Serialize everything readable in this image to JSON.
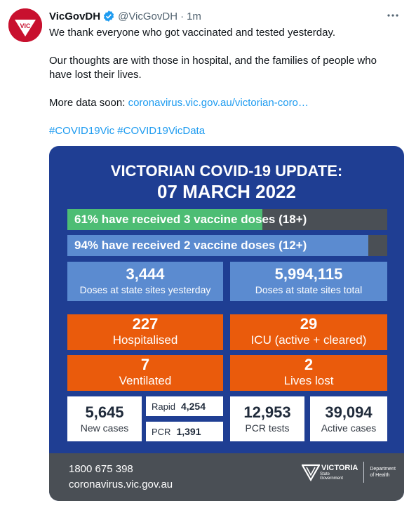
{
  "tweet": {
    "display_name": "VicGovDH",
    "handle": "@VicGovDH",
    "dot": "·",
    "time": "1m",
    "avatar_text": "VIC",
    "paragraph1": "We thank everyone who got vaccinated and tested yesterday.",
    "paragraph2": "Our thoughts are with those in hospital, and the families of people who have lost their lives.",
    "paragraph3_prefix": "More data soon: ",
    "paragraph3_link": "coronavirus.vic.gov.au/victorian-coro…",
    "hashtag1": "#COVID19Vic",
    "hashtag2": "#COVID19VicData"
  },
  "card": {
    "title_line1": "VICTORIAN COVID-19 UPDATE:",
    "title_line2": "07 MARCH 2022",
    "vaccine_bar_1": {
      "label": "61% have received 3 vaccine doses (18+)",
      "percent": 61,
      "color": "#4dbd74"
    },
    "vaccine_bar_2": {
      "label": "94% have received 2 vaccine doses (12+)",
      "percent": 94,
      "color": "#5b8bd0"
    },
    "doses_yesterday": {
      "value": "3,444",
      "label": "Doses at state sites yesterday"
    },
    "doses_total": {
      "value": "5,994,115",
      "label": "Doses at state sites total"
    },
    "hospitalised": {
      "value": "227",
      "label": "Hospitalised"
    },
    "icu": {
      "value": "29",
      "label": "ICU (active + cleared)"
    },
    "ventilated": {
      "value": "7",
      "label": "Ventilated"
    },
    "lives_lost": {
      "value": "2",
      "label": "Lives lost"
    },
    "new_cases": {
      "value": "5,645",
      "label": "New cases"
    },
    "rapid": {
      "label": "Rapid",
      "value": "4,254"
    },
    "pcr": {
      "label": "PCR",
      "value": "1,391"
    },
    "pcr_tests": {
      "value": "12,953",
      "label": "PCR tests"
    },
    "active_cases": {
      "value": "39,094",
      "label": "Active cases"
    },
    "footer": {
      "phone": "1800 675 398",
      "site": "coronavirus.vic.gov.au",
      "logo_word": "VICTORIA",
      "logo_sub1": "State",
      "logo_sub2": "Government",
      "dept_line1": "Department",
      "dept_line2": "of Health"
    }
  }
}
